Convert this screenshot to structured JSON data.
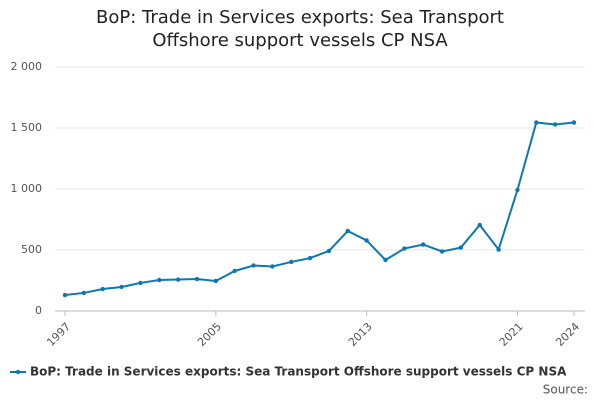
{
  "chart_data": {
    "type": "line",
    "title": "BoP: Trade in Services exports: Sea Transport Offshore support vessels CP NSA",
    "x": [
      1997,
      1998,
      1999,
      2000,
      2001,
      2002,
      2003,
      2004,
      2005,
      2006,
      2007,
      2008,
      2009,
      2010,
      2011,
      2012,
      2013,
      2014,
      2015,
      2016,
      2017,
      2018,
      2019,
      2020,
      2021,
      2022,
      2023,
      2024
    ],
    "series": [
      {
        "name": "BoP: Trade in Services exports: Sea Transport Offshore support vessels CP NSA",
        "color": "#0f77b0",
        "values": [
          131,
          148,
          180,
          197,
          230,
          254,
          258,
          262,
          246,
          328,
          373,
          365,
          402,
          434,
          492,
          656,
          578,
          418,
          512,
          545,
          488,
          520,
          705,
          504,
          992,
          1545,
          1529,
          1545
        ]
      }
    ],
    "xlim": [
      1997,
      2024
    ],
    "xticks": [
      1997,
      2005,
      2013,
      2021,
      2024
    ],
    "ylim": [
      0,
      2000
    ],
    "yticks": [
      0,
      500,
      {
        "value": 1000,
        "label": "1 000"
      },
      {
        "value": 1500,
        "label": "1 500"
      },
      {
        "value": 2000,
        "label": "2 000"
      }
    ],
    "grid": true,
    "legend": "bottom",
    "source": "Source:"
  }
}
